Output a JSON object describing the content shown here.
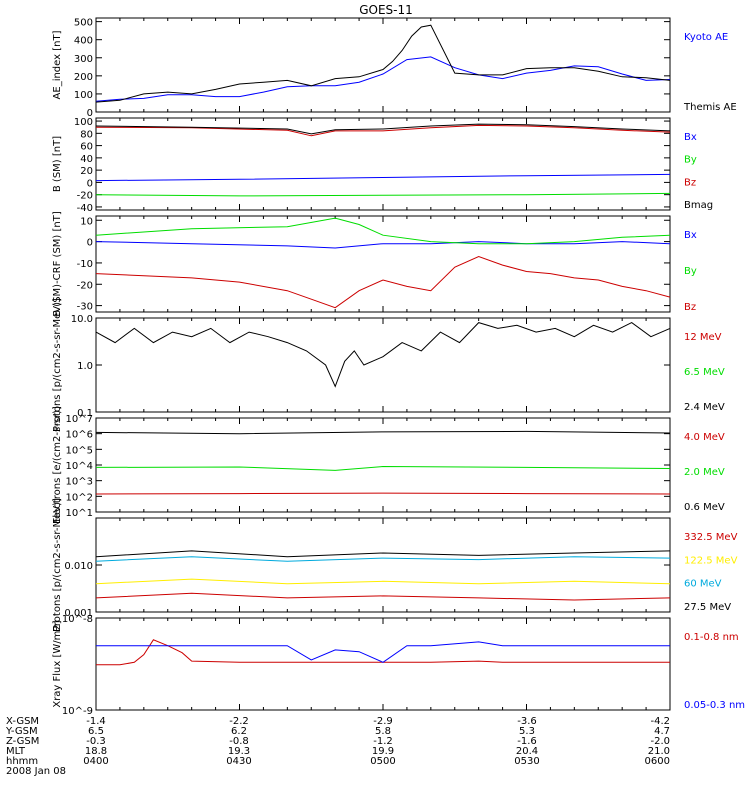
{
  "title": "GOES-11",
  "colors": {
    "black": "#000000",
    "blue": "#0000ff",
    "red": "#cc0000",
    "green": "#00dd00",
    "yellow": "#ffee00",
    "cyan": "#00aadd"
  },
  "footer": {
    "row_labels": [
      "X-GSM",
      "Y-GSM",
      "Z-GSM",
      "MLT",
      "hhmm",
      "2008 Jan 08"
    ],
    "columns": [
      {
        "x": "-1.4",
        "y": "6.5",
        "z": "-0.3",
        "mlt": "18.8",
        "hhmm": "0400"
      },
      {
        "x": "-2.2",
        "y": "6.2",
        "z": "-0.8",
        "mlt": "19.3",
        "hhmm": "0430"
      },
      {
        "x": "-2.9",
        "y": "5.8",
        "z": "-1.2",
        "mlt": "19.9",
        "hhmm": "0500"
      },
      {
        "x": "-3.6",
        "y": "5.3",
        "z": "-1.6",
        "mlt": "20.4",
        "hhmm": "0530"
      },
      {
        "x": "-4.2",
        "y": "4.7",
        "z": "-2.0",
        "mlt": "21.0",
        "hhmm": "0600"
      }
    ]
  },
  "chart_data": [
    {
      "type": "line",
      "ylabel": "AE_index [nT]",
      "ylim": [
        0,
        520
      ],
      "yticks": [
        "0",
        "100",
        "200",
        "300",
        "400",
        "500"
      ],
      "series": [
        {
          "name": "Kyoto AE",
          "color": "blue",
          "x": [
            0,
            5,
            10,
            15,
            20,
            25,
            30,
            35,
            40,
            45,
            50,
            55,
            60,
            65,
            70,
            75,
            80,
            85,
            90,
            95,
            100,
            105,
            110,
            115,
            120
          ],
          "y": [
            60,
            70,
            75,
            95,
            95,
            85,
            85,
            110,
            140,
            145,
            145,
            165,
            210,
            290,
            305,
            245,
            205,
            185,
            215,
            230,
            255,
            250,
            210,
            175,
            180
          ]
        },
        {
          "name": "Themis AE",
          "color": "black",
          "x": [
            0,
            5,
            10,
            15,
            20,
            25,
            30,
            35,
            40,
            45,
            50,
            55,
            60,
            62,
            64,
            66,
            68,
            70,
            75,
            80,
            85,
            90,
            95,
            100,
            105,
            110,
            115,
            120
          ],
          "y": [
            55,
            65,
            100,
            110,
            100,
            125,
            155,
            165,
            175,
            145,
            185,
            195,
            235,
            280,
            340,
            420,
            470,
            480,
            215,
            205,
            205,
            240,
            245,
            245,
            225,
            195,
            190,
            175
          ]
        }
      ]
    },
    {
      "type": "line",
      "ylabel": "B (SM) [nT]",
      "ylim": [
        -45,
        105
      ],
      "yticks": [
        "-40",
        "-20",
        "0",
        "20",
        "40",
        "60",
        "80",
        "100"
      ],
      "series": [
        {
          "name": "Bx",
          "color": "blue",
          "x": [
            0,
            30,
            60,
            90,
            120
          ],
          "y": [
            3,
            5,
            8,
            11,
            13
          ]
        },
        {
          "name": "By",
          "color": "green",
          "x": [
            0,
            30,
            60,
            90,
            120
          ],
          "y": [
            -20,
            -22,
            -21,
            -20,
            -18
          ]
        },
        {
          "name": "Bz",
          "color": "red",
          "x": [
            0,
            20,
            40,
            45,
            50,
            60,
            70,
            80,
            90,
            100,
            110,
            120
          ],
          "y": [
            90,
            89,
            85,
            76,
            84,
            84,
            89,
            93,
            92,
            89,
            85,
            82
          ]
        },
        {
          "name": "Bmag",
          "color": "black",
          "x": [
            0,
            20,
            40,
            45,
            50,
            60,
            70,
            80,
            90,
            100,
            110,
            120
          ],
          "y": [
            92,
            90,
            87,
            79,
            86,
            87,
            92,
            95,
            94,
            91,
            87,
            84
          ]
        }
      ]
    },
    {
      "type": "line",
      "ylabel": "B (SM)-CRF (SM) [nT]",
      "ylim": [
        -33,
        12
      ],
      "yticks": [
        "-30",
        "-20",
        "-10",
        "0",
        "10"
      ],
      "series": [
        {
          "name": "Bx",
          "color": "blue",
          "x": [
            0,
            20,
            40,
            50,
            60,
            70,
            80,
            90,
            100,
            110,
            120
          ],
          "y": [
            0,
            -1,
            -2,
            -3,
            -1,
            -1,
            0,
            -1,
            -1,
            0,
            -1
          ]
        },
        {
          "name": "By",
          "color": "green",
          "x": [
            0,
            20,
            40,
            50,
            55,
            60,
            70,
            80,
            90,
            100,
            110,
            120
          ],
          "y": [
            3,
            6,
            7,
            11,
            8,
            3,
            0,
            -1,
            -1,
            0,
            2,
            3
          ]
        },
        {
          "name": "Bz",
          "color": "red",
          "x": [
            0,
            10,
            20,
            30,
            40,
            45,
            50,
            55,
            60,
            65,
            70,
            75,
            80,
            85,
            90,
            95,
            100,
            105,
            110,
            115,
            120
          ],
          "y": [
            -15,
            -16,
            -17,
            -19,
            -23,
            -27,
            -31,
            -23,
            -18,
            -21,
            -23,
            -12,
            -7,
            -11,
            -14,
            -15,
            -17,
            -18,
            -21,
            -23,
            -26
          ]
        }
      ]
    },
    {
      "type": "line",
      "ylabel": "Protons [p/(cm2-s-sr-MeV)]",
      "scale": "log",
      "ylim": [
        0.1,
        10
      ],
      "yticks": [
        "0.1",
        "1.0",
        "10.0"
      ],
      "series": [
        {
          "name": "12 MeV",
          "color": "red",
          "x": [],
          "y": []
        },
        {
          "name": "6.5 MeV",
          "color": "green",
          "x": [],
          "y": []
        },
        {
          "name": "2.4 MeV",
          "color": "black",
          "x": [
            0,
            4,
            8,
            12,
            16,
            20,
            24,
            28,
            32,
            36,
            40,
            44,
            48,
            50,
            52,
            54,
            56,
            60,
            64,
            68,
            72,
            76,
            80,
            84,
            88,
            92,
            96,
            100,
            104,
            108,
            112,
            116,
            120
          ],
          "y": [
            5,
            3,
            6,
            3,
            5,
            4,
            6,
            3,
            5,
            4,
            3,
            2,
            1,
            0.35,
            1.2,
            2,
            1,
            1.5,
            3,
            2,
            5,
            3,
            8,
            6,
            7,
            5,
            6,
            4,
            7,
            5,
            8,
            4,
            6
          ]
        }
      ]
    },
    {
      "type": "line",
      "ylabel": "Electrons [e/(cm2-s-sr)]",
      "scale": "log",
      "ylim": [
        10,
        10000000
      ],
      "yticks": [
        "10^1",
        "10^2",
        "10^3",
        "10^4",
        "10^5",
        "10^6",
        "10^7"
      ],
      "series": [
        {
          "name": "4.0 MeV",
          "color": "red",
          "x": [
            0,
            30,
            60,
            90,
            120
          ],
          "y": [
            140,
            150,
            160,
            150,
            140
          ]
        },
        {
          "name": "2.0 MeV",
          "color": "green",
          "x": [
            0,
            30,
            50,
            60,
            90,
            120
          ],
          "y": [
            7000,
            7500,
            4500,
            8000,
            7000,
            6000
          ]
        },
        {
          "name": "0.6 MeV",
          "color": "black",
          "x": [
            0,
            30,
            60,
            90,
            120
          ],
          "y": [
            1200000,
            1000000,
            1300000,
            1400000,
            1100000
          ]
        }
      ]
    },
    {
      "type": "line",
      "ylabel": "Protons [p/(cm2-s-sr-MeV)]",
      "scale": "log",
      "ylim": [
        0.001,
        0.1
      ],
      "yticks": [
        "0.001",
        "0.010"
      ],
      "series": [
        {
          "name": "332.5 MeV",
          "color": "red",
          "x": [
            0,
            20,
            40,
            60,
            80,
            100,
            120
          ],
          "y": [
            0.002,
            0.0025,
            0.002,
            0.0022,
            0.002,
            0.0018,
            0.002
          ]
        },
        {
          "name": "122.5 MeV",
          "color": "yellow",
          "x": [
            0,
            20,
            40,
            60,
            80,
            100,
            120
          ],
          "y": [
            0.004,
            0.005,
            0.004,
            0.0045,
            0.004,
            0.0045,
            0.004
          ]
        },
        {
          "name": "60 MeV",
          "color": "cyan",
          "x": [
            0,
            20,
            40,
            60,
            80,
            100,
            120
          ],
          "y": [
            0.012,
            0.015,
            0.012,
            0.014,
            0.013,
            0.015,
            0.014
          ]
        },
        {
          "name": "27.5 MeV",
          "color": "black",
          "x": [
            0,
            20,
            40,
            60,
            80,
            100,
            120
          ],
          "y": [
            0.015,
            0.02,
            0.015,
            0.018,
            0.016,
            0.018,
            0.02
          ]
        }
      ]
    },
    {
      "type": "line",
      "ylabel": "Xray Flux [W/m2]",
      "scale": "log",
      "ylim": [
        1e-09,
        1e-08
      ],
      "yticks": [
        "10^-9",
        "10^-8"
      ],
      "series": [
        {
          "name": "0.1-0.8 nm",
          "color": "red",
          "x": [
            0,
            5,
            8,
            10,
            12,
            15,
            18,
            20,
            30,
            60,
            70,
            80,
            85,
            90,
            120
          ],
          "y": [
            3.1e-09,
            3.1e-09,
            3.3e-09,
            4e-09,
            5.8e-09,
            5e-09,
            4.2e-09,
            3.4e-09,
            3.3e-09,
            3.3e-09,
            3.3e-09,
            3.4e-09,
            3.3e-09,
            3.3e-09,
            3.3e-09
          ]
        },
        {
          "name": "0.05-0.3 nm",
          "color": "blue",
          "x": [
            0,
            20,
            40,
            45,
            50,
            55,
            60,
            65,
            70,
            80,
            85,
            90,
            120
          ],
          "y": [
            5e-09,
            5e-09,
            5e-09,
            3.5e-09,
            4.5e-09,
            4.3e-09,
            3.3e-09,
            5e-09,
            5e-09,
            5.5e-09,
            5e-09,
            5e-09,
            5e-09
          ]
        }
      ]
    }
  ]
}
